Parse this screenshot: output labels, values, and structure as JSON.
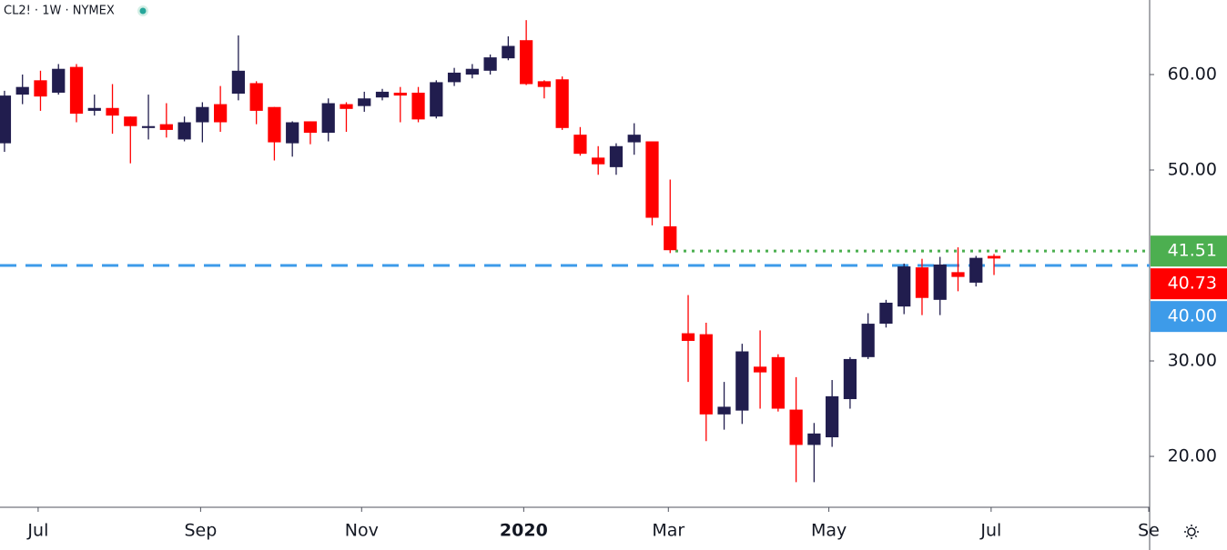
{
  "chart_data": {
    "type": "candlestick",
    "symbol": "CL2! · 1W · NYMEX",
    "up_color": "#211d4e",
    "down_color": "#ff0000",
    "open": [
      52.8,
      57.9,
      59.4,
      58.1,
      60.8,
      56.2,
      56.5,
      55.6,
      54.4,
      54.8,
      53.2,
      55.0,
      56.9,
      58.0,
      59.1,
      56.6,
      52.8,
      55.1,
      53.9,
      56.9,
      56.7,
      57.6,
      58.1,
      58.1,
      55.6,
      59.2,
      60.0,
      60.4,
      61.7,
      63.6,
      59.3,
      59.5,
      53.7,
      51.3,
      50.3,
      52.9,
      53.0,
      44.1,
      32.9,
      32.8,
      24.4,
      24.8,
      29.4,
      30.4,
      24.9,
      21.2,
      22.0,
      26.0,
      30.4,
      33.9,
      35.7,
      39.8,
      36.4,
      39.3,
      38.2,
      41.0
    ],
    "high": [
      58.3,
      60.0,
      60.4,
      61.1,
      61.1,
      57.9,
      59.0,
      55.6,
      57.9,
      57.0,
      55.6,
      57.1,
      58.8,
      64.1,
      59.3,
      56.6,
      55.1,
      55.1,
      57.5,
      57.1,
      58.2,
      58.5,
      58.7,
      58.7,
      59.4,
      60.7,
      61.1,
      62.1,
      64.0,
      65.7,
      59.4,
      59.8,
      54.5,
      52.5,
      52.8,
      54.9,
      53.0,
      49.0,
      36.9,
      34.0,
      27.8,
      31.8,
      33.2,
      30.7,
      28.3,
      23.5,
      28.0,
      30.4,
      35.0,
      36.4,
      40.2,
      40.7,
      40.9,
      41.9,
      41.0,
      41.2
    ],
    "low": [
      51.9,
      56.9,
      56.2,
      57.9,
      55.0,
      55.7,
      53.8,
      50.7,
      53.2,
      53.4,
      53.0,
      52.9,
      54.0,
      57.3,
      54.8,
      51.0,
      51.4,
      52.7,
      53.0,
      54.0,
      56.1,
      57.3,
      55.0,
      55.0,
      55.4,
      58.8,
      59.6,
      60.0,
      61.5,
      58.9,
      57.5,
      54.2,
      51.5,
      49.5,
      49.5,
      51.6,
      44.2,
      41.3,
      27.8,
      21.6,
      22.8,
      23.4,
      25.0,
      24.7,
      17.3,
      17.3,
      21.0,
      25.0,
      30.2,
      33.5,
      34.9,
      34.8,
      34.8,
      37.3,
      37.8,
      39.0
    ],
    "close": [
      57.8,
      58.7,
      57.7,
      60.6,
      55.9,
      56.5,
      55.7,
      54.6,
      54.6,
      54.2,
      55.0,
      56.6,
      55.0,
      60.4,
      56.2,
      52.9,
      55.0,
      53.9,
      57.0,
      56.4,
      57.5,
      58.2,
      57.8,
      55.3,
      59.2,
      60.2,
      60.6,
      61.8,
      63.0,
      59.0,
      58.7,
      54.4,
      51.7,
      50.6,
      52.5,
      53.7,
      45.0,
      41.6,
      32.1,
      24.4,
      25.2,
      31.0,
      28.8,
      25.0,
      21.2,
      22.4,
      26.3,
      30.2,
      33.9,
      36.1,
      39.9,
      36.6,
      40.1,
      38.8,
      40.8,
      40.73
    ],
    "xlim": [
      -0.25,
      63.65
    ],
    "xticks": [
      {
        "value": 1.87,
        "label": "Jul"
      },
      {
        "value": 10.9,
        "label": "Sep"
      },
      {
        "value": 19.85,
        "label": "Nov"
      },
      {
        "value": 28.86,
        "label": "2020"
      },
      {
        "value": 36.9,
        "label": "Mar"
      },
      {
        "value": 45.82,
        "label": "May"
      },
      {
        "value": 54.84,
        "label": "Jul"
      },
      {
        "value": 63.6,
        "label": "Se"
      }
    ],
    "ylim": [
      14.67,
      67.81
    ],
    "yticks": [
      {
        "value": 20,
        "label": "20.00"
      },
      {
        "value": 30,
        "label": "30.00"
      },
      {
        "value": 50,
        "label": "50.00"
      },
      {
        "value": 60,
        "label": "60.00"
      }
    ],
    "levels": [
      {
        "value": 41.51,
        "label": "41.51",
        "color": "#4caf50",
        "style": "dotted"
      },
      {
        "value": 40.73,
        "label": "40.73",
        "color": "#ff0000",
        "style": "none"
      },
      {
        "value": 40,
        "label": "40.00",
        "color": "#3d9be9",
        "style": "dashed"
      }
    ]
  }
}
